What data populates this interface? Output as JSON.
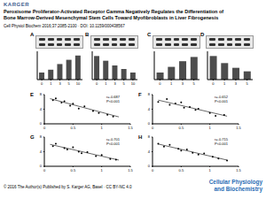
{
  "header": {
    "publisher": "KARGER",
    "title": "Peroxisome Proliferator-Activated Receptor Gamma Negatively Regulates the Differentiation of Bone Marrow-Derived Mesenchymal Stem Cells Toward Myofibroblasts in Liver Fibrogenesis",
    "citation": "Cell Physiol Biochem 2016;37:2085-2100 · DOI: 10.1159/000438567"
  },
  "footer": {
    "copyright": "© 2016 The Author(s) Published by S. Karger AG, Basel · CC BY-NC 4.0",
    "journal": [
      "Cellular Physiology",
      "and Biochemistry"
    ]
  },
  "chart_data": [
    {
      "title": "A",
      "type": "bar",
      "categories": [
        "0",
        "1",
        "3",
        "5",
        "10"
      ],
      "values": [
        1,
        1.4,
        2.2,
        2.8,
        3.4
      ],
      "color": "#4d4d4d",
      "ylim": [
        0,
        4
      ],
      "yticks": [
        0,
        2,
        4
      ],
      "tick_labels": "x"
    },
    {
      "title": "B",
      "type": "bar",
      "categories": [
        "0",
        "1",
        "3",
        "5",
        "10"
      ],
      "values": [
        1,
        0.8,
        0.6,
        0.45,
        0.3
      ],
      "color": "#4d4d4d",
      "ylim": [
        0,
        1.2
      ],
      "yticks": [
        0,
        0.6,
        1.2
      ],
      "tick_labels": "x"
    },
    {
      "title": "C",
      "type": "bar",
      "categories": [
        "0",
        "1",
        "3",
        "5"
      ],
      "values": [
        1,
        1.8,
        2.6,
        3.2
      ],
      "color": "#4d4d4d",
      "ylim": [
        0,
        4
      ],
      "yticks": [
        0,
        2,
        4
      ],
      "tick_labels": "x"
    },
    {
      "title": "D",
      "type": "bar",
      "categories": [
        "0",
        "1",
        "3",
        "5"
      ],
      "values": [
        1,
        0.7,
        0.5,
        0.35
      ],
      "color": "#4d4d4d",
      "ylim": [
        0,
        1.2
      ],
      "yticks": [
        0,
        0.6,
        1.2
      ],
      "tick_labels": "x"
    },
    {
      "title": "E",
      "type": "scatter",
      "x": [
        0.15,
        0.2,
        0.3,
        0.35,
        0.45,
        0.5,
        0.6,
        0.7,
        0.85,
        0.95,
        1.1,
        1.2
      ],
      "values": [
        6.5,
        7,
        5.8,
        6.2,
        5,
        5.5,
        4.2,
        4.8,
        3.5,
        3,
        2.5,
        2
      ],
      "fit": {
        "x": [
          0.1,
          1.3
        ],
        "values": [
          6.9,
          1.9
        ]
      },
      "annotations": [
        "r=-0.687",
        "P<0.001"
      ],
      "xlim": [
        0,
        1.5
      ],
      "xticks": [
        0,
        0.5,
        1,
        1.5
      ],
      "ylim": [
        0,
        8
      ],
      "yticks": [
        0,
        4,
        8
      ],
      "color": "#000000"
    },
    {
      "title": "F",
      "type": "scatter",
      "x": [
        0.1,
        0.25,
        0.3,
        0.4,
        0.5,
        0.55,
        0.65,
        0.75,
        0.8,
        1,
        1.1,
        1.25
      ],
      "values": [
        6,
        6.8,
        5.2,
        5.6,
        5.9,
        4.4,
        4.6,
        3.8,
        4.1,
        3,
        2.2,
        2.4
      ],
      "fit": {
        "x": [
          0.1,
          1.3
        ],
        "values": [
          6.5,
          2.1
        ]
      },
      "annotations": [
        "r=-0.652",
        "P<0.001"
      ],
      "xlim": [
        0,
        1.5
      ],
      "xticks": [
        0,
        0.5,
        1,
        1.5
      ],
      "ylim": [
        0,
        8
      ],
      "yticks": [
        0,
        4,
        8
      ],
      "color": "#000000"
    },
    {
      "title": "G",
      "type": "scatter",
      "x": [
        0.15,
        0.2,
        0.35,
        0.4,
        0.5,
        0.6,
        0.65,
        0.75,
        0.9,
        1,
        1.15,
        1.25
      ],
      "values": [
        5.5,
        6.2,
        5,
        4.6,
        5.2,
        4,
        3.6,
        3.9,
        2.8,
        3.1,
        2,
        1.8
      ],
      "fit": {
        "x": [
          0.1,
          1.3
        ],
        "values": [
          6,
          1.7
        ]
      },
      "annotations": [
        "r=-0.701",
        "P<0.001"
      ],
      "xlim": [
        0,
        1.5
      ],
      "xticks": [
        0,
        0.5,
        1,
        1.5
      ],
      "ylim": [
        0,
        8
      ],
      "yticks": [
        0,
        4,
        8
      ],
      "color": "#000000"
    },
    {
      "title": "H",
      "type": "scatter",
      "x": [
        0.1,
        0.2,
        0.3,
        0.45,
        0.5,
        0.6,
        0.7,
        0.8,
        0.9,
        1.05,
        1.15,
        1.3
      ],
      "values": [
        6.2,
        5.4,
        5.9,
        4.8,
        4.3,
        4.6,
        3.7,
        3.2,
        3.5,
        2.6,
        2.1,
        1.6
      ],
      "fit": {
        "x": [
          0.1,
          1.3
        ],
        "values": [
          6.1,
          1.7
        ]
      },
      "annotations": [
        "r=-0.715",
        "P<0.001"
      ],
      "xlim": [
        0,
        1.5
      ],
      "xticks": [
        0,
        0.5,
        1,
        1.5
      ],
      "ylim": [
        0,
        8
      ],
      "yticks": [
        0,
        4,
        8
      ],
      "color": "#000000"
    }
  ]
}
